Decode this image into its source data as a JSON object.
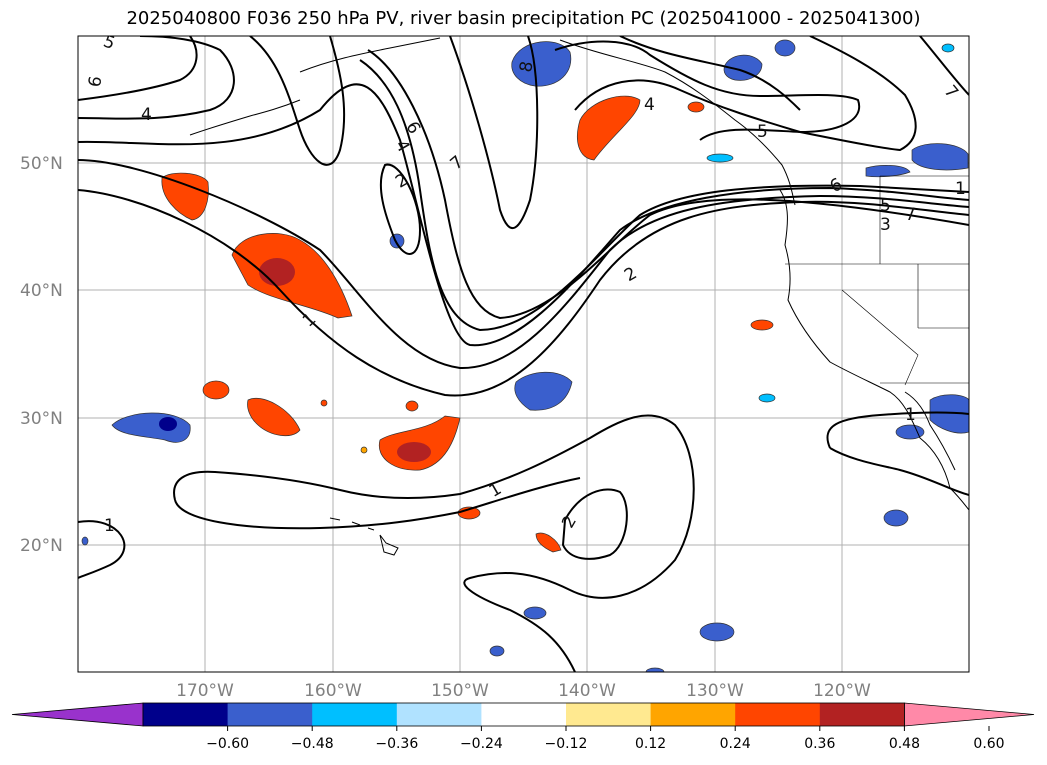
{
  "title": "2025040800 F036 250 hPa PV, river basin precipitation PC (2025041000 - 2025041300)",
  "map": {
    "projection": "cylindrical",
    "lon_range": [
      -180,
      -110
    ],
    "lat_range": [
      10,
      60
    ],
    "lat_labels": [
      "50°N",
      "40°N",
      "30°N",
      "20°N"
    ],
    "lon_labels": [
      "170°W",
      "160°W",
      "150°W",
      "140°W",
      "130°W",
      "120°W"
    ],
    "gridlines": true
  },
  "colorbar": {
    "ticks": [
      "−0.60",
      "−0.48",
      "−0.36",
      "−0.24",
      "−0.12",
      "0.12",
      "0.24",
      "0.36",
      "0.48",
      "0.60"
    ],
    "colors": [
      "#9932cc",
      "#00008b",
      "#3a5fcd",
      "#00bfff",
      "#b0e2ff",
      "#ffffff",
      "#ffe990",
      "#ffa500",
      "#ff4500",
      "#b22222",
      "#ff89a8"
    ],
    "extend": "both"
  },
  "contour_labels": [
    "5",
    "6",
    "4",
    "8",
    "4",
    "5",
    "7",
    "6",
    "4",
    "7",
    "2",
    "6",
    "5",
    "7",
    "3",
    "2",
    "1",
    "1",
    "1",
    "2",
    "1",
    "1"
  ],
  "colors": {
    "contour": "#000000",
    "grid": "#b0b0b0",
    "coast": "#000000"
  }
}
